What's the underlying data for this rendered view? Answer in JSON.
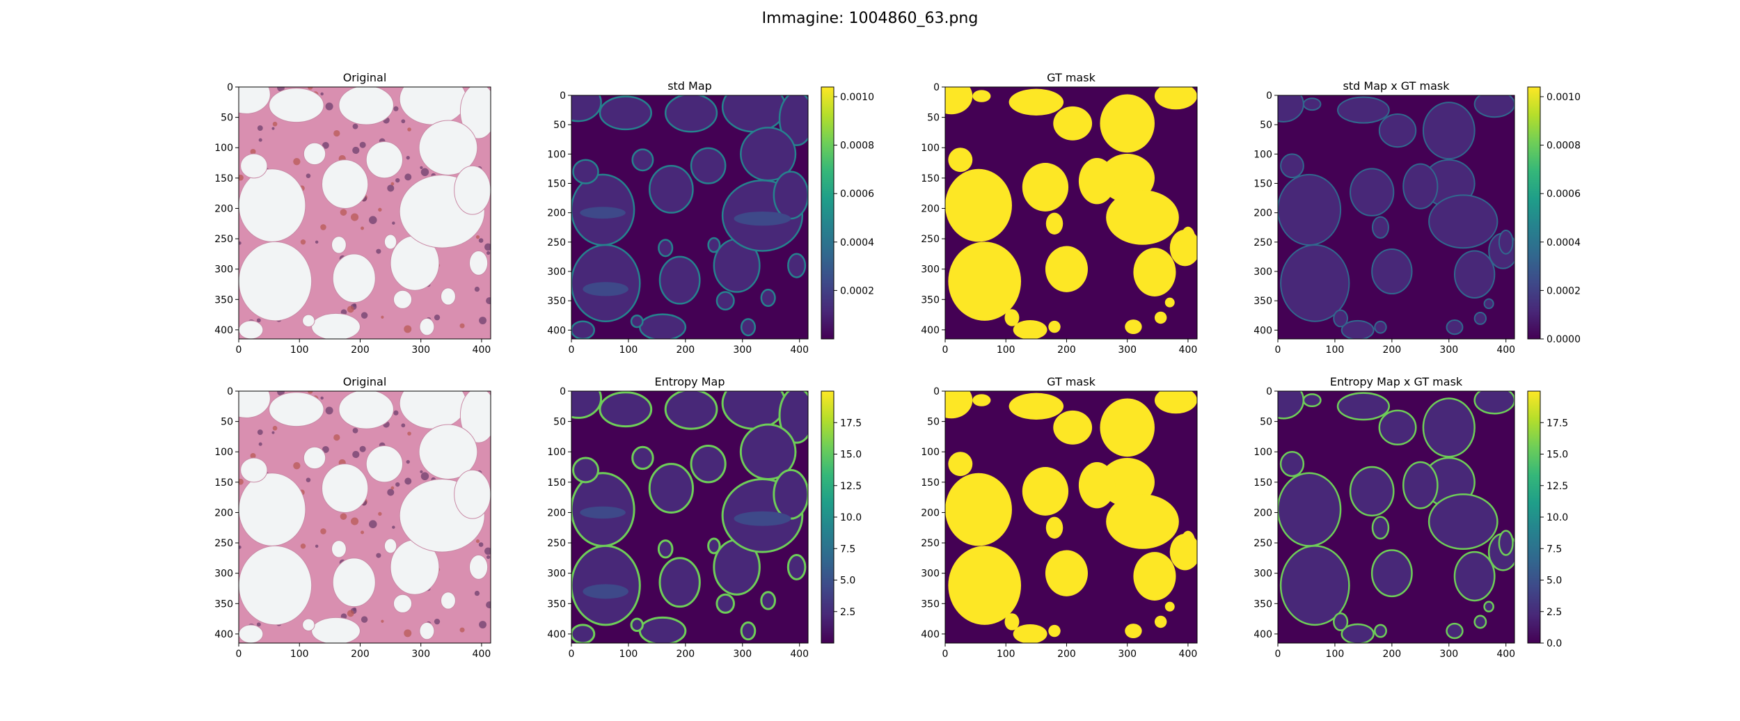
{
  "figure": {
    "suptitle": "Immagine: 1004860_63.png"
  },
  "colormap": {
    "viridis": [
      "#440154",
      "#482878",
      "#3e4989",
      "#31688e",
      "#26828e",
      "#1f9e89",
      "#35b779",
      "#6ece58",
      "#b5de2b",
      "#fde725"
    ],
    "tissue_background": "#f2f4f5",
    "tissue_stroma": "#d98fb0",
    "tissue_nuclei": "#6e3f6e",
    "tissue_rbc": "#b85a56"
  },
  "chart_data": [
    {
      "type": "heatmap",
      "title": "Original",
      "content": "rgb-histology",
      "xticks": [
        "0",
        "100",
        "200",
        "300",
        "400"
      ],
      "yticks": [
        "0",
        "50",
        "100",
        "150",
        "200",
        "250",
        "300",
        "350",
        "400"
      ],
      "xlim": [
        0,
        415
      ],
      "ylim": [
        415,
        0
      ]
    },
    {
      "type": "heatmap",
      "title": "std Map",
      "content": "uncertainty-map",
      "xticks": [
        "0",
        "100",
        "200",
        "300",
        "400"
      ],
      "yticks": [
        "0",
        "50",
        "100",
        "150",
        "200",
        "250",
        "300",
        "350",
        "400"
      ],
      "xlim": [
        0,
        415
      ],
      "ylim": [
        415,
        0
      ],
      "colorbar": {
        "range": [
          0.0,
          0.00104
        ],
        "ticks": [
          0.0002,
          0.0004,
          0.0006,
          0.0008,
          0.001
        ],
        "ticklabels": [
          "0.0002",
          "0.0004",
          "0.0006",
          "0.0008",
          "0.0010"
        ]
      }
    },
    {
      "type": "heatmap",
      "title": "GT mask",
      "content": "binary-mask",
      "xticks": [
        "0",
        "100",
        "200",
        "300",
        "400"
      ],
      "yticks": [
        "0",
        "50",
        "100",
        "150",
        "200",
        "250",
        "300",
        "350",
        "400"
      ],
      "xlim": [
        0,
        415
      ],
      "ylim": [
        415,
        0
      ]
    },
    {
      "type": "heatmap",
      "title": "std Map x GT mask",
      "content": "masked-uncertainty",
      "xticks": [
        "0",
        "100",
        "200",
        "300",
        "400"
      ],
      "yticks": [
        "0",
        "50",
        "100",
        "150",
        "200",
        "250",
        "300",
        "350",
        "400"
      ],
      "xlim": [
        0,
        415
      ],
      "ylim": [
        415,
        0
      ],
      "colorbar": {
        "range": [
          0.0,
          0.00104
        ],
        "ticks": [
          0.0,
          0.0002,
          0.0004,
          0.0006,
          0.0008,
          0.001
        ],
        "ticklabels": [
          "0.0000",
          "0.0002",
          "0.0004",
          "0.0006",
          "0.0008",
          "0.0010"
        ]
      }
    },
    {
      "type": "heatmap",
      "title": "Original",
      "content": "rgb-histology",
      "xticks": [
        "0",
        "100",
        "200",
        "300",
        "400"
      ],
      "yticks": [
        "0",
        "50",
        "100",
        "150",
        "200",
        "250",
        "300",
        "350",
        "400"
      ],
      "xlim": [
        0,
        415
      ],
      "ylim": [
        415,
        0
      ]
    },
    {
      "type": "heatmap",
      "title": "Entropy Map",
      "content": "uncertainty-map",
      "xticks": [
        "0",
        "100",
        "200",
        "300",
        "400"
      ],
      "yticks": [
        "0",
        "50",
        "100",
        "150",
        "200",
        "250",
        "300",
        "350",
        "400"
      ],
      "xlim": [
        0,
        415
      ],
      "ylim": [
        415,
        0
      ],
      "colorbar": {
        "range": [
          0.0,
          20.0
        ],
        "ticks": [
          2.5,
          5.0,
          7.5,
          10.0,
          12.5,
          15.0,
          17.5
        ],
        "ticklabels": [
          "2.5",
          "5.0",
          "7.5",
          "10.0",
          "12.5",
          "15.0",
          "17.5"
        ]
      }
    },
    {
      "type": "heatmap",
      "title": "GT mask",
      "content": "binary-mask",
      "xticks": [
        "0",
        "100",
        "200",
        "300",
        "400"
      ],
      "yticks": [
        "0",
        "50",
        "100",
        "150",
        "200",
        "250",
        "300",
        "350",
        "400"
      ],
      "xlim": [
        0,
        415
      ],
      "ylim": [
        415,
        0
      ]
    },
    {
      "type": "heatmap",
      "title": "Entropy Map x GT mask",
      "content": "masked-uncertainty",
      "xticks": [
        "0",
        "100",
        "200",
        "300",
        "400"
      ],
      "yticks": [
        "0",
        "50",
        "100",
        "150",
        "200",
        "250",
        "300",
        "350",
        "400"
      ],
      "xlim": [
        0,
        415
      ],
      "ylim": [
        415,
        0
      ],
      "colorbar": {
        "range": [
          0.0,
          20.0
        ],
        "ticks": [
          0.0,
          2.5,
          5.0,
          7.5,
          10.0,
          12.5,
          15.0,
          17.5
        ],
        "ticklabels": [
          "0.0",
          "2.5",
          "5.0",
          "7.5",
          "10.0",
          "12.5",
          "15.0",
          "17.5"
        ]
      }
    }
  ]
}
